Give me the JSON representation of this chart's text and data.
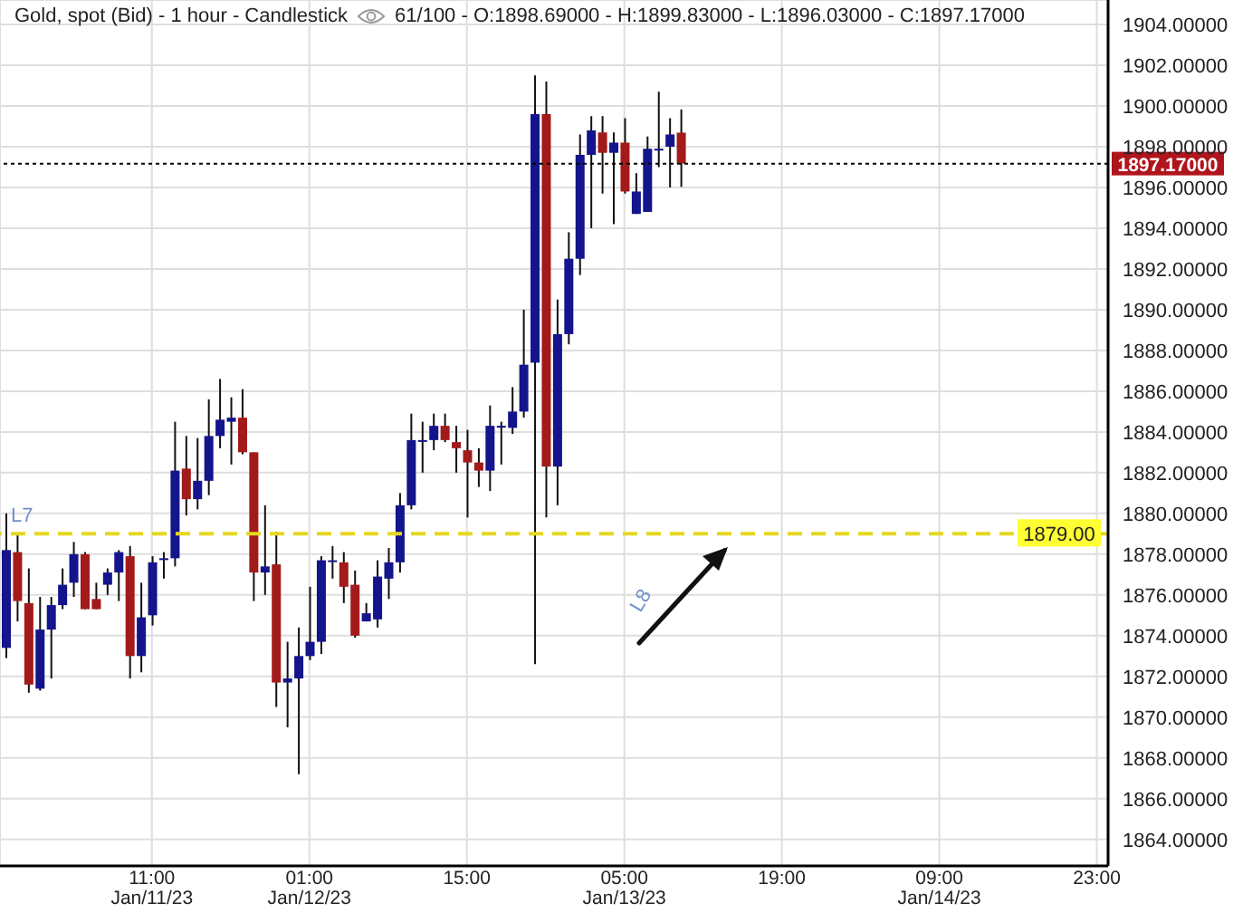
{
  "chart_data": {
    "type": "candlestick",
    "title": "Gold, spot (Bid) - 1 hour - Candlestick",
    "subtitle": "61/100 - O:1898.69000 - H:1899.83000 - L:1896.03000 - C:1897.17000",
    "x": [
      "--01-10T22:00",
      "--01-10T23:00",
      "--01-11T00:00",
      "--01-11T01:00",
      "--01-11T02:00",
      "--01-11T03:00",
      "--01-11T04:00",
      "--01-11T05:00",
      "--01-11T06:00",
      "--01-11T07:00",
      "--01-11T08:00",
      "--01-11T09:00",
      "--01-11T10:00",
      "--01-11T11:00",
      "--01-11T12:00",
      "--01-11T13:00",
      "--01-11T14:00",
      "--01-11T15:00",
      "--01-11T16:00",
      "--01-11T17:00",
      "--01-11T18:00",
      "--01-11T19:00",
      "--01-11T20:00",
      "--01-11T21:00",
      "--01-11T22:00",
      "--01-11T23:00",
      "--01-12T00:00",
      "--01-12T01:00",
      "--01-12T02:00",
      "--01-12T03:00",
      "--01-12T04:00",
      "--01-12T05:00",
      "--01-12T06:00",
      "--01-12T07:00",
      "--01-12T08:00",
      "--01-12T09:00",
      "--01-12T10:00",
      "--01-12T11:00",
      "--01-12T12:00",
      "--01-12T13:00",
      "--01-12T14:00",
      "--01-12T15:00",
      "--01-12T16:00",
      "--01-12T17:00",
      "--01-12T18:00",
      "--01-12T19:00",
      "--01-12T20:00",
      "--01-12T21:00",
      "--01-12T22:00",
      "--01-12T23:00",
      "--01-13T00:00",
      "--01-13T01:00",
      "--01-13T02:00",
      "--01-13T03:00",
      "--01-13T04:00",
      "--01-13T05:00",
      "--01-13T06:00",
      "--01-13T07:00",
      "--01-13T08:00",
      "--01-13T09:00",
      "--01-13T10:00"
    ],
    "ohlc": [
      [
        1873.4,
        1880.0,
        1872.9,
        1878.2
      ],
      [
        1878.1,
        1879.0,
        1874.7,
        1875.7
      ],
      [
        1875.6,
        1877.3,
        1871.2,
        1871.6
      ],
      [
        1871.4,
        1875.9,
        1871.3,
        1874.3
      ],
      [
        1874.3,
        1875.9,
        1871.9,
        1875.5
      ],
      [
        1875.5,
        1877.3,
        1875.3,
        1876.5
      ],
      [
        1876.6,
        1878.6,
        1875.9,
        1878.0
      ],
      [
        1878.0,
        1878.1,
        1875.3,
        1875.3
      ],
      [
        1875.8,
        1876.6,
        1875.3,
        1875.3
      ],
      [
        1876.5,
        1877.3,
        1876.0,
        1877.1
      ],
      [
        1877.1,
        1878.2,
        1875.7,
        1878.1
      ],
      [
        1877.9,
        1878.4,
        1871.9,
        1873.0
      ],
      [
        1873.0,
        1876.6,
        1872.2,
        1874.9
      ],
      [
        1875.0,
        1877.9,
        1874.5,
        1877.6
      ],
      [
        1877.8,
        1878.1,
        1876.8,
        1877.8
      ],
      [
        1877.8,
        1884.5,
        1877.4,
        1882.1
      ],
      [
        1882.2,
        1883.8,
        1879.9,
        1880.7
      ],
      [
        1880.7,
        1883.7,
        1880.2,
        1881.6
      ],
      [
        1881.6,
        1885.6,
        1880.9,
        1883.8
      ],
      [
        1883.8,
        1886.6,
        1883.2,
        1884.6
      ],
      [
        1884.5,
        1885.7,
        1882.4,
        1884.7
      ],
      [
        1884.7,
        1886.1,
        1882.9,
        1883.0
      ],
      [
        1883.0,
        1883.0,
        1875.7,
        1877.1
      ],
      [
        1877.1,
        1880.4,
        1876.0,
        1877.4
      ],
      [
        1877.5,
        1879.1,
        1870.5,
        1871.7
      ],
      [
        1871.7,
        1873.7,
        1869.5,
        1871.9
      ],
      [
        1871.9,
        1874.4,
        1867.2,
        1873.0
      ],
      [
        1873.0,
        1876.4,
        1872.8,
        1873.7
      ],
      [
        1873.7,
        1877.9,
        1873.1,
        1877.7
      ],
      [
        1877.7,
        1878.4,
        1876.8,
        1877.7
      ],
      [
        1877.6,
        1878.1,
        1875.6,
        1876.4
      ],
      [
        1876.5,
        1877.2,
        1873.9,
        1874.0
      ],
      [
        1874.7,
        1875.6,
        1874.7,
        1875.1
      ],
      [
        1874.8,
        1877.7,
        1874.4,
        1876.9
      ],
      [
        1876.8,
        1878.3,
        1875.8,
        1877.6
      ],
      [
        1877.6,
        1881.0,
        1877.1,
        1880.4
      ],
      [
        1880.4,
        1884.9,
        1880.2,
        1883.6
      ],
      [
        1883.6,
        1884.5,
        1882.0,
        1883.6
      ],
      [
        1883.6,
        1884.9,
        1883.1,
        1884.3
      ],
      [
        1884.3,
        1884.9,
        1883.5,
        1883.6
      ],
      [
        1883.5,
        1884.3,
        1882.0,
        1883.2
      ],
      [
        1883.1,
        1884.1,
        1879.8,
        1882.5
      ],
      [
        1882.5,
        1883.2,
        1881.3,
        1882.1
      ],
      [
        1882.1,
        1885.3,
        1881.1,
        1884.3
      ],
      [
        1884.3,
        1884.5,
        1882.4,
        1884.3
      ],
      [
        1884.2,
        1886.2,
        1883.9,
        1885.0
      ],
      [
        1885.0,
        1890.0,
        1884.7,
        1887.3
      ],
      [
        1887.4,
        1901.5,
        1872.6,
        1899.6
      ],
      [
        1899.6,
        1901.2,
        1879.8,
        1882.3
      ],
      [
        1882.3,
        1890.5,
        1880.4,
        1888.8
      ],
      [
        1888.8,
        1893.8,
        1888.3,
        1892.5
      ],
      [
        1892.5,
        1898.6,
        1891.7,
        1897.6
      ],
      [
        1897.6,
        1899.5,
        1894.0,
        1898.8
      ],
      [
        1898.7,
        1899.5,
        1895.7,
        1897.7
      ],
      [
        1897.7,
        1898.7,
        1894.2,
        1898.2
      ],
      [
        1898.2,
        1899.4,
        1895.7,
        1895.8
      ],
      [
        1894.7,
        1896.7,
        1894.7,
        1895.8
      ],
      [
        1894.8,
        1898.5,
        1894.8,
        1897.9
      ],
      [
        1897.9,
        1900.7,
        1897.0,
        1897.9
      ],
      [
        1898.0,
        1899.4,
        1896.0,
        1898.6
      ],
      [
        1898.69,
        1899.83,
        1896.03,
        1897.17
      ]
    ],
    "colors": [
      "#14148c",
      "#a31a1a",
      "#a31a1a",
      "#14148c",
      "#14148c",
      "#14148c",
      "#14148c",
      "#a31a1a",
      "#a31a1a",
      "#14148c",
      "#14148c",
      "#a31a1a",
      "#14148c",
      "#14148c",
      "#14148c",
      "#14148c",
      "#a31a1a",
      "#14148c",
      "#14148c",
      "#14148c",
      "#14148c",
      "#a31a1a",
      "#a31a1a",
      "#14148c",
      "#a31a1a",
      "#14148c",
      "#14148c",
      "#14148c",
      "#14148c",
      "#14148c",
      "#a31a1a",
      "#a31a1a",
      "#14148c",
      "#14148c",
      "#14148c",
      "#14148c",
      "#14148c",
      "#14148c",
      "#14148c",
      "#a31a1a",
      "#a31a1a",
      "#a31a1a",
      "#a31a1a",
      "#14148c",
      "#14148c",
      "#14148c",
      "#14148c",
      "#14148c",
      "#a31a1a",
      "#14148c",
      "#14148c",
      "#14148c",
      "#14148c",
      "#a31a1a",
      "#14148c",
      "#a31a1a",
      "#14148c",
      "#14148c",
      "#14148c",
      "#14148c",
      "#a31a1a"
    ],
    "xlim": [
      "--01-10T21:30",
      "--01-15T00:00"
    ],
    "xticks": [
      {
        "value": "--01-11T11:00",
        "label": "11:00 Jan/11/23"
      },
      {
        "value": "--01-12T01:00",
        "label": "01:00 Jan/12/23"
      },
      {
        "value": "--01-12T15:00",
        "label": "15:00"
      },
      {
        "value": "--01-13T05:00",
        "label": "05:00 Jan/13/23"
      },
      {
        "value": "--01-13T19:00",
        "label": "19:00"
      },
      {
        "value": "--01-14T09:00",
        "label": "09:00 Jan/14/23"
      },
      {
        "value": "--01-14T23:00",
        "label": "23:00"
      }
    ],
    "ylim": [
      1862.7,
      1905.2
    ],
    "yticks": [
      {
        "value": 1864,
        "label": "1864.00000"
      },
      {
        "value": 1866,
        "label": "1866.00000"
      },
      {
        "value": 1868,
        "label": "1868.00000"
      },
      {
        "value": 1870,
        "label": "1870.00000"
      },
      {
        "value": 1872,
        "label": "1872.00000"
      },
      {
        "value": 1874,
        "label": "1874.00000"
      },
      {
        "value": 1876,
        "label": "1876.00000"
      },
      {
        "value": 1878,
        "label": "1878.00000"
      },
      {
        "value": 1880,
        "label": "1880.00000"
      },
      {
        "value": 1882,
        "label": "1882.00000"
      },
      {
        "value": 1884,
        "label": "1884.00000"
      },
      {
        "value": 1886,
        "label": "1886.00000"
      },
      {
        "value": 1888,
        "label": "1888.00000"
      },
      {
        "value": 1890,
        "label": "1890.00000"
      },
      {
        "value": 1892,
        "label": "1892.00000"
      },
      {
        "value": 1894,
        "label": "1894.00000"
      },
      {
        "value": 1896,
        "label": "1896.00000"
      },
      {
        "value": 1898,
        "label": "1898.00000"
      },
      {
        "value": 1900,
        "label": "1900.00000"
      },
      {
        "value": 1902,
        "label": "1902.00000"
      },
      {
        "value": 1904,
        "label": "1904.00000"
      }
    ],
    "ref_lines": [
      {
        "axis": "y",
        "value": 1879,
        "label": "1879.00",
        "color": "#e6d81e",
        "line_style": "dashed"
      },
      {
        "axis": "y",
        "value": 1897.17,
        "label": "1897.17000",
        "color": "#000000",
        "line_style": "dotted"
      }
    ],
    "annotations": [
      "L7",
      "L8"
    ],
    "grid": true
  }
}
